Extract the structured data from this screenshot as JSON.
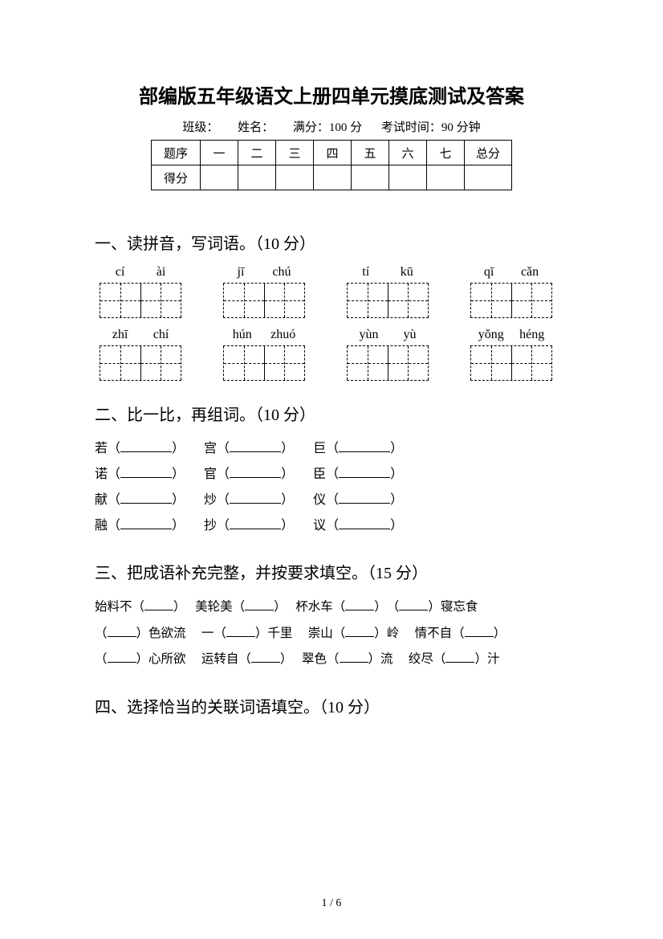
{
  "title": "部编版五年级语文上册四单元摸底测试及答案",
  "meta": {
    "class_label": "班级：",
    "name_label": "姓名：",
    "full_label": "满分：100 分",
    "time_label": "考试时间：90 分钟"
  },
  "score_table": {
    "row1": [
      "题序",
      "一",
      "二",
      "三",
      "四",
      "五",
      "六",
      "七",
      "总分"
    ],
    "row2_label": "得分"
  },
  "sec1": {
    "heading": "一、读拼音，写词语。（10 分）",
    "row1": [
      {
        "a": "cí",
        "b": "ài"
      },
      {
        "a": "jī",
        "b": "chú"
      },
      {
        "a": "tí",
        "b": "kū"
      },
      {
        "a": "qī",
        "b": "cǎn"
      }
    ],
    "row2": [
      {
        "a": "zhī",
        "b": "chí"
      },
      {
        "a": "hún",
        "b": "zhuó"
      },
      {
        "a": "yùn",
        "b": "yù"
      },
      {
        "a": "yǒng",
        "b": "héng"
      }
    ]
  },
  "sec2": {
    "heading": "二、比一比，再组词。（10 分）",
    "rows": [
      [
        {
          "c": "若"
        },
        {
          "c": "宫"
        },
        {
          "c": "巨"
        }
      ],
      [
        {
          "c": "诺"
        },
        {
          "c": "官"
        },
        {
          "c": "臣"
        }
      ],
      [
        {
          "c": "献"
        },
        {
          "c": "炒"
        },
        {
          "c": "仪"
        }
      ],
      [
        {
          "c": "融"
        },
        {
          "c": "抄"
        },
        {
          "c": "议"
        }
      ]
    ]
  },
  "sec3": {
    "heading": "三、把成语补充完整，并按要求填空。（15 分）",
    "lines": [
      [
        "始料不（",
        "）　 美轮美（",
        "）　 杯水车（",
        "）　（",
        "）寝忘食"
      ],
      [
        "（",
        "）色欲流　 一（",
        "）千里　 崇山（",
        "）岭　 情不自（",
        "）"
      ],
      [
        "（",
        "）心所欲　 运转自（",
        "）　 翠色（",
        "）流　 绞尽（",
        "）汁"
      ]
    ]
  },
  "sec4": {
    "heading": "四、选择恰当的关联词语填空。（10 分）"
  },
  "footer": "1 / 6"
}
